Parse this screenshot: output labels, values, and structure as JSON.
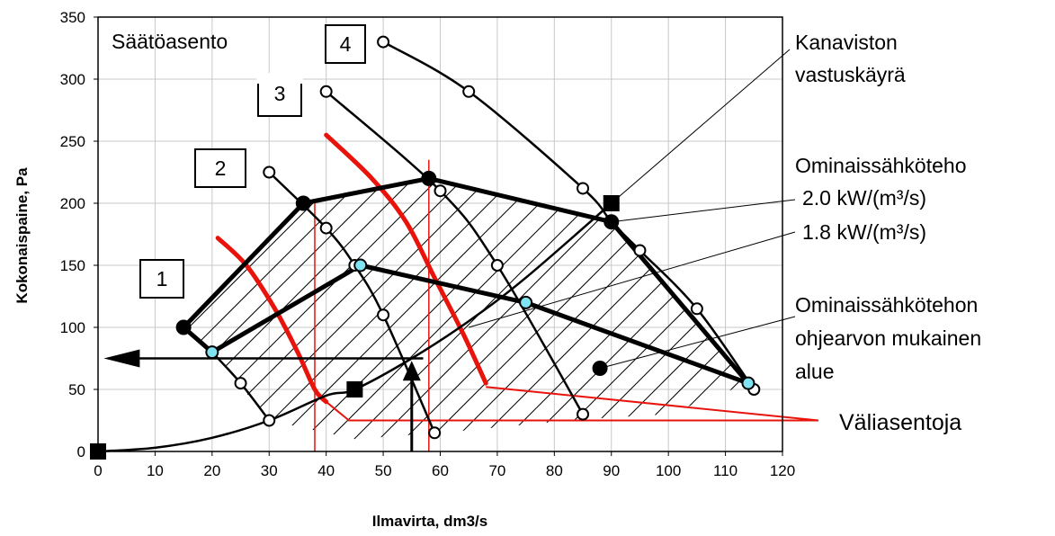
{
  "chart_data": {
    "type": "line",
    "xlabel": "Ilmavirta, dm3/s",
    "ylabel": "Kokonaispaine, Pa",
    "xlim": [
      0,
      120
    ],
    "ylim": [
      0,
      350
    ],
    "xticks": [
      0,
      10,
      20,
      30,
      40,
      50,
      60,
      70,
      80,
      90,
      100,
      110,
      120
    ],
    "yticks": [
      0,
      50,
      100,
      150,
      200,
      250,
      300,
      350
    ],
    "grid": true,
    "fan_curves": [
      {
        "name": "1",
        "x": [
          20,
          25,
          30
        ],
        "y": [
          80,
          55,
          25
        ]
      },
      {
        "name": "2",
        "x": [
          30,
          40,
          45,
          50,
          59
        ],
        "y": [
          225,
          180,
          150,
          110,
          15
        ]
      },
      {
        "name": "3",
        "x": [
          40,
          60,
          70,
          85
        ],
        "y": [
          290,
          210,
          150,
          30
        ]
      },
      {
        "name": "4",
        "x": [
          50,
          65,
          85,
          90,
          95,
          105,
          115
        ],
        "y": [
          330,
          290,
          212,
          185,
          162,
          115,
          50
        ]
      }
    ],
    "duct_resistance_curve": {
      "name": "Kanaviston vastuskäyrä",
      "x": [
        0,
        10,
        20,
        30,
        40,
        45,
        55,
        65,
        75,
        90
      ],
      "y": [
        0,
        3,
        11,
        25,
        45,
        50,
        75,
        105,
        140,
        200
      ]
    },
    "operating_line_thick": {
      "x": [
        15,
        36,
        58,
        90,
        114
      ],
      "y": [
        100,
        200,
        220,
        185,
        55
      ]
    },
    "operating_line_thick_2": {
      "x": [
        20,
        46,
        75,
        114
      ],
      "y": [
        80,
        150,
        120,
        55
      ]
    },
    "operating_line_thick_3": {
      "x": [
        15,
        20
      ],
      "y": [
        100,
        80
      ]
    },
    "sfp_limit_curves": [
      {
        "name": "1.8 kW/(m³/s)",
        "x": [
          21,
          26,
          31,
          35,
          38,
          40
        ],
        "y": [
          172,
          150,
          115,
          80,
          50,
          40
        ]
      },
      {
        "name": "2.0 kW/(m³/s)",
        "x": [
          40,
          48,
          54,
          59,
          64,
          68
        ],
        "y": [
          255,
          220,
          185,
          140,
          95,
          55
        ]
      }
    ],
    "square_markers": [
      {
        "x": 0,
        "y": 0
      },
      {
        "x": 45,
        "y": 50
      },
      {
        "x": 90,
        "y": 200
      }
    ],
    "cyan_points": [
      {
        "x": 20,
        "y": 80
      },
      {
        "x": 46,
        "y": 150
      },
      {
        "x": 75,
        "y": 120
      },
      {
        "x": 114,
        "y": 55
      }
    ],
    "black_points": [
      {
        "x": 15,
        "y": 100
      },
      {
        "x": 36,
        "y": 200
      },
      {
        "x": 58,
        "y": 220
      },
      {
        "x": 90,
        "y": 185
      },
      {
        "x": 88,
        "y": 67
      }
    ],
    "vertical_red_lines_x": [
      38,
      58
    ],
    "annotations": {
      "setting_title": "Säätöasento",
      "positions": [
        "1",
        "2",
        "3",
        "4"
      ],
      "duct_curve_label_1": "Kanaviston",
      "duct_curve_label_2": "vastuskäyrä",
      "sfp_title": "Ominaissähköteho",
      "sfp_value_1": "2.0 kW/(m³/s)",
      "sfp_value_2": "1.8 kW/(m³/s)",
      "region_label_1": "Ominaissähkötehon",
      "region_label_2": "ohjearvon mukainen",
      "region_label_3": "alue",
      "intermediate_label": "Väliasentoja"
    },
    "colors": {
      "curve": "#000000",
      "limit": "#e8140c",
      "cyan_marker": "#7fe3f2",
      "grid": "#c8c8c8"
    }
  }
}
